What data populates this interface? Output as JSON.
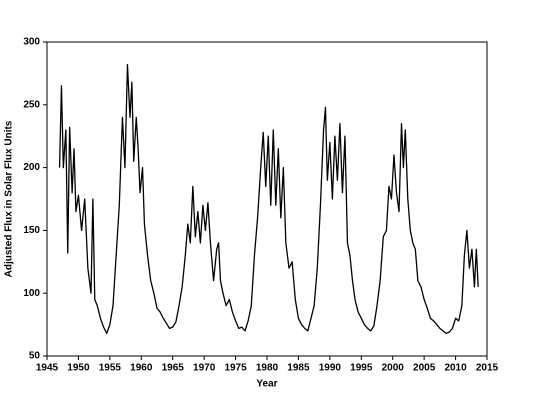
{
  "chart_data": {
    "type": "line",
    "x_label": "Year",
    "y_label": "Adjusted Flux in Solar Flux Units",
    "xlim": [
      1945,
      2015
    ],
    "xticks": [
      1945,
      1950,
      1955,
      1960,
      1965,
      1970,
      1975,
      1980,
      1985,
      1990,
      1995,
      2000,
      2005,
      2010,
      2015
    ],
    "ylim": [
      50,
      300
    ],
    "yticks": [
      50,
      100,
      150,
      200,
      250,
      300
    ],
    "grid": false,
    "color": "#000000",
    "x": [
      1947.0,
      1947.3,
      1947.6,
      1948.0,
      1948.3,
      1948.6,
      1949.0,
      1949.3,
      1949.6,
      1950.0,
      1950.5,
      1951.0,
      1951.5,
      1952.0,
      1952.3,
      1952.6,
      1953.0,
      1953.5,
      1954.0,
      1954.5,
      1955.0,
      1955.5,
      1956.0,
      1956.5,
      1957.0,
      1957.4,
      1957.8,
      1958.2,
      1958.5,
      1958.8,
      1959.2,
      1959.5,
      1959.8,
      1960.2,
      1960.5,
      1961.0,
      1961.5,
      1962.0,
      1962.5,
      1963.0,
      1963.5,
      1964.0,
      1964.5,
      1965.0,
      1965.5,
      1966.0,
      1966.5,
      1967.0,
      1967.4,
      1967.8,
      1968.2,
      1968.6,
      1969.0,
      1969.4,
      1969.8,
      1970.2,
      1970.6,
      1971.0,
      1971.5,
      1972.0,
      1972.3,
      1972.6,
      1973.0,
      1973.5,
      1974.0,
      1974.5,
      1975.0,
      1975.5,
      1976.0,
      1976.5,
      1977.0,
      1977.5,
      1978.0,
      1978.5,
      1979.0,
      1979.4,
      1979.8,
      1980.2,
      1980.6,
      1981.0,
      1981.4,
      1981.8,
      1982.2,
      1982.6,
      1983.0,
      1983.5,
      1984.0,
      1984.5,
      1985.0,
      1985.5,
      1986.0,
      1986.5,
      1987.0,
      1987.5,
      1988.0,
      1988.5,
      1989.0,
      1989.3,
      1989.6,
      1990.0,
      1990.4,
      1990.8,
      1991.2,
      1991.6,
      1992.0,
      1992.4,
      1992.8,
      1993.2,
      1993.6,
      1994.0,
      1994.5,
      1995.0,
      1995.5,
      1996.0,
      1996.5,
      1997.0,
      1997.5,
      1998.0,
      1998.5,
      1999.0,
      1999.4,
      1999.8,
      2000.2,
      2000.6,
      2001.0,
      2001.4,
      2001.7,
      2002.0,
      2002.4,
      2002.8,
      2003.2,
      2003.6,
      2004.0,
      2004.5,
      2005.0,
      2005.5,
      2006.0,
      2006.5,
      2007.0,
      2007.5,
      2008.0,
      2008.5,
      2009.0,
      2009.5,
      2010.0,
      2010.5,
      2011.0,
      2011.4,
      2011.8,
      2012.2,
      2012.6,
      2013.0,
      2013.3,
      2013.6
    ],
    "values": [
      200,
      265,
      200,
      230,
      132,
      232,
      180,
      215,
      165,
      178,
      150,
      175,
      120,
      100,
      175,
      95,
      90,
      80,
      73,
      68,
      75,
      90,
      130,
      170,
      240,
      200,
      282,
      240,
      268,
      205,
      240,
      215,
      180,
      200,
      155,
      130,
      110,
      100,
      88,
      85,
      80,
      76,
      72,
      73,
      77,
      90,
      105,
      130,
      155,
      140,
      185,
      145,
      165,
      140,
      170,
      150,
      172,
      140,
      110,
      135,
      140,
      110,
      100,
      90,
      95,
      85,
      78,
      72,
      73,
      70,
      78,
      90,
      130,
      160,
      200,
      228,
      185,
      225,
      170,
      230,
      170,
      215,
      160,
      200,
      140,
      120,
      125,
      95,
      80,
      75,
      72,
      70,
      80,
      90,
      120,
      170,
      230,
      248,
      190,
      220,
      175,
      225,
      190,
      235,
      180,
      225,
      140,
      130,
      110,
      95,
      85,
      80,
      75,
      72,
      70,
      74,
      90,
      110,
      145,
      150,
      185,
      175,
      210,
      180,
      165,
      235,
      200,
      230,
      175,
      150,
      140,
      135,
      110,
      105,
      95,
      88,
      80,
      78,
      75,
      72,
      70,
      68,
      69,
      72,
      80,
      78,
      90,
      130,
      150,
      120,
      135,
      105,
      135,
      105
    ]
  }
}
